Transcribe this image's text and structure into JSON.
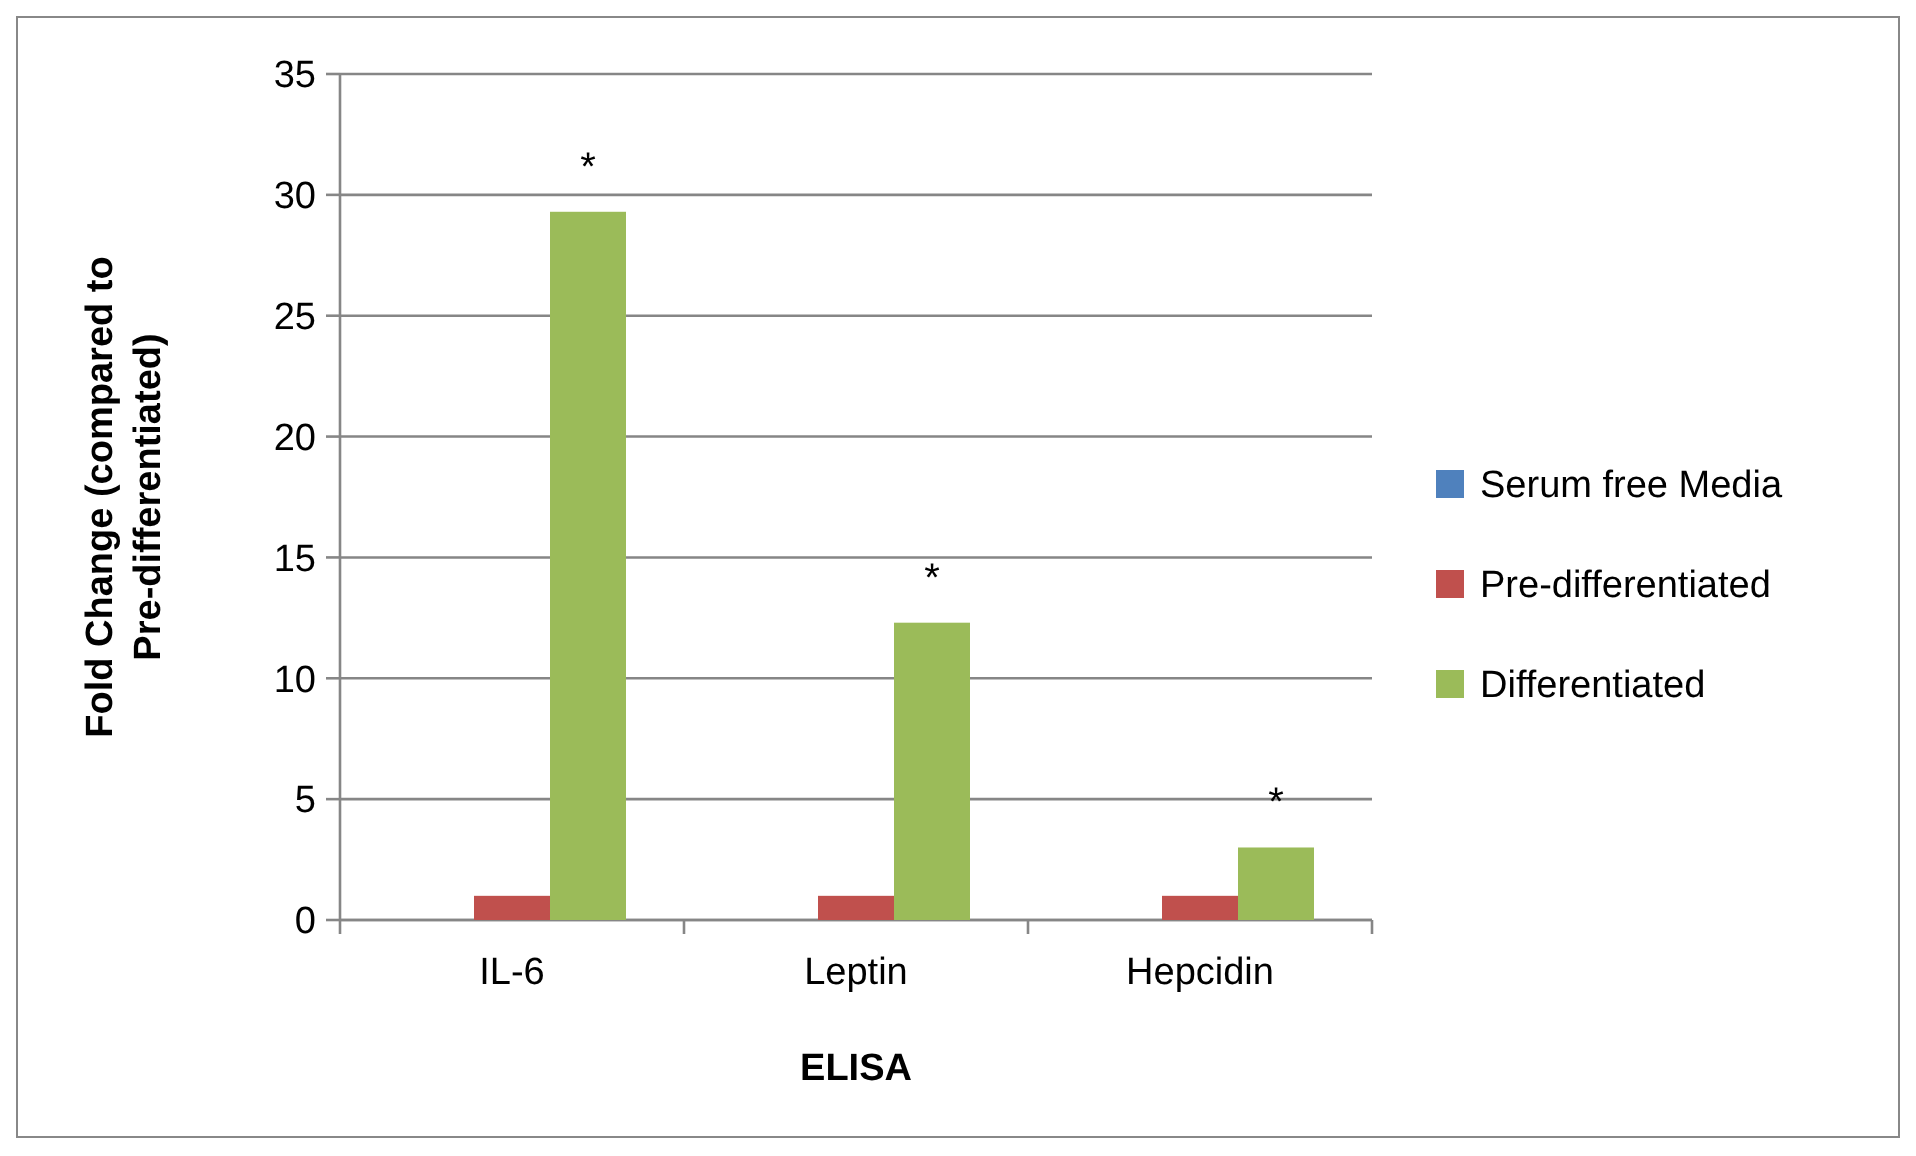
{
  "chart_data": {
    "type": "bar",
    "xlabel": "ELISA",
    "ylabel": "Fold Change (compared to Pre-differentiated)",
    "categories": [
      "IL-6",
      "Leptin",
      "Hepcidin"
    ],
    "series": [
      {
        "name": "Serum free Media",
        "color": "#4f81bd",
        "values": [
          0,
          0,
          0
        ]
      },
      {
        "name": "Pre-differentiated",
        "color": "#c0504d",
        "values": [
          1,
          1,
          1
        ]
      },
      {
        "name": "Differentiated",
        "color": "#9bbb59",
        "values": [
          29.3,
          12.3,
          3.0
        ]
      }
    ],
    "ylim": [
      0,
      35
    ],
    "yticks": [
      0,
      5,
      10,
      15,
      20,
      25,
      30,
      35
    ],
    "grid": "y",
    "legend": "right",
    "annotations": [
      "*",
      "*",
      "*"
    ]
  }
}
